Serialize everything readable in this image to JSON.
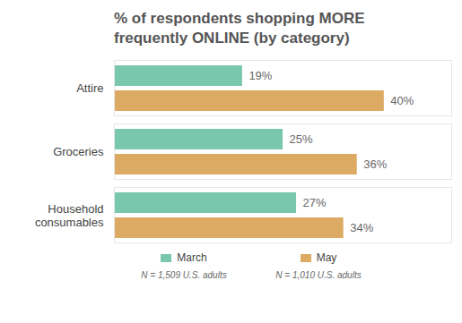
{
  "chart_data": {
    "type": "bar",
    "orientation": "horizontal",
    "title": "% of respondents shopping MORE frequently ONLINE (by category)",
    "categories": [
      "Attire",
      "Groceries",
      "Household consumables"
    ],
    "series": [
      {
        "name": "March",
        "color": "#79c8ad",
        "values": [
          19,
          25,
          27
        ],
        "value_labels": [
          "19%",
          "25%",
          "27%"
        ],
        "note": "N = 1,509 U.S. adults"
      },
      {
        "name": "May",
        "color": "#dcaa62",
        "values": [
          40,
          36,
          34
        ],
        "value_labels": [
          "40%",
          "36%",
          "34%"
        ],
        "note": "N = 1,010 U.S. adults"
      }
    ],
    "xlim": [
      0,
      50
    ],
    "data_labels": true,
    "tick_labels": "y",
    "legend": "bottom"
  }
}
